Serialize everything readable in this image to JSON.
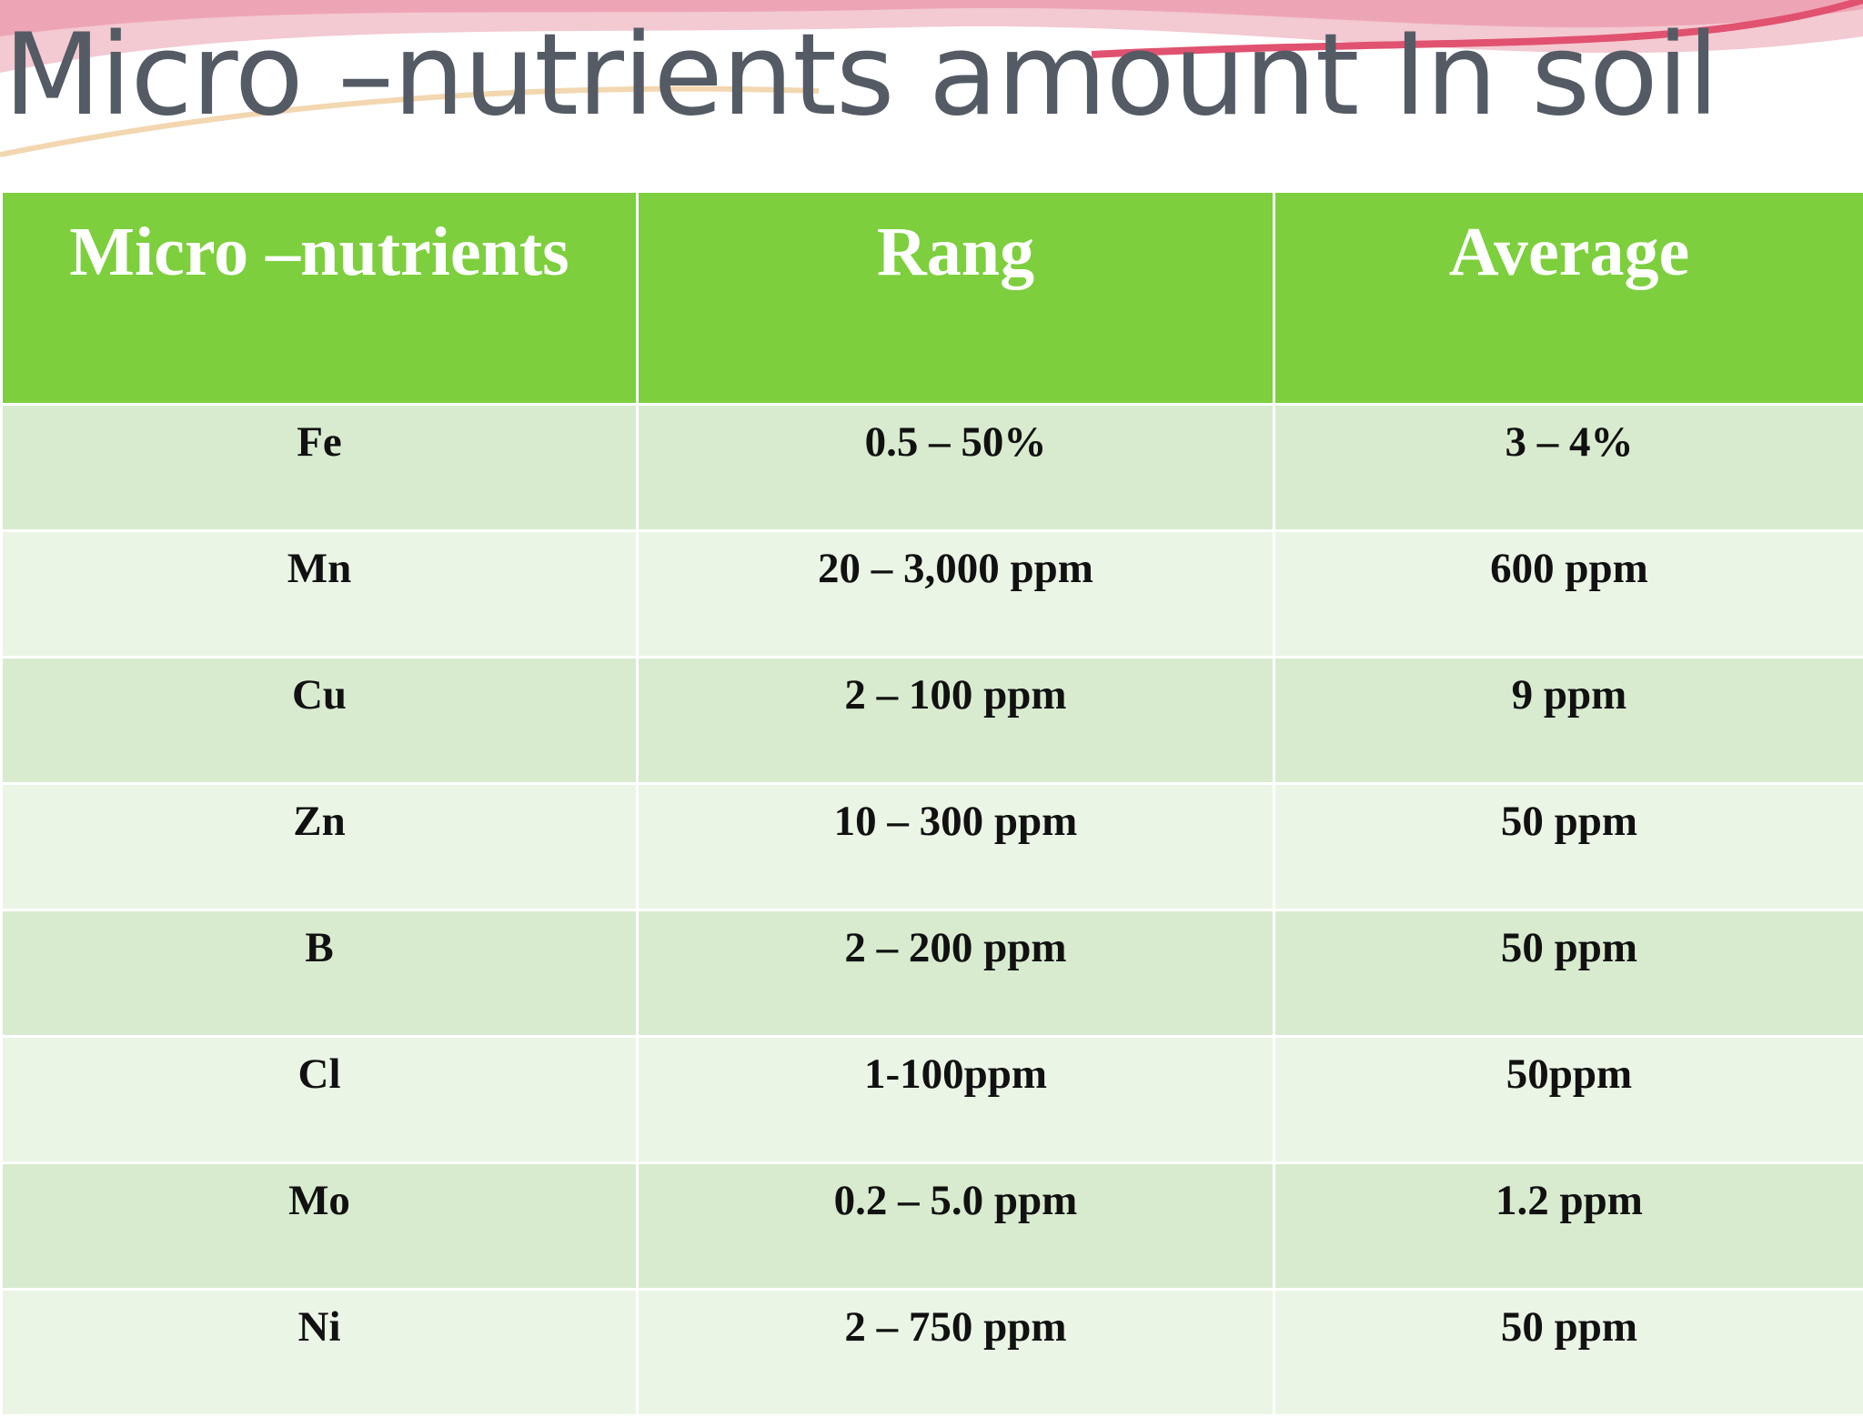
{
  "title": "Micro –nutrients amount In soil",
  "table": {
    "headers": [
      "Micro –nutrients",
      "Rang",
      "Average"
    ],
    "rows": [
      [
        "Fe",
        "0.5 – 50%",
        "3 – 4%"
      ],
      [
        "Mn",
        "20 – 3,000 ppm",
        "600 ppm"
      ],
      [
        "Cu",
        "2 – 100 ppm",
        "9 ppm"
      ],
      [
        "Zn",
        "10 – 300 ppm",
        "50 ppm"
      ],
      [
        "B",
        "2 – 200 ppm",
        "50 ppm"
      ],
      [
        "Cl",
        "1-100ppm",
        "50ppm"
      ],
      [
        "Mo",
        "0.2 – 5.0 ppm",
        "1.2 ppm"
      ],
      [
        "Ni",
        "2 – 750 ppm",
        "50 ppm"
      ]
    ]
  }
}
